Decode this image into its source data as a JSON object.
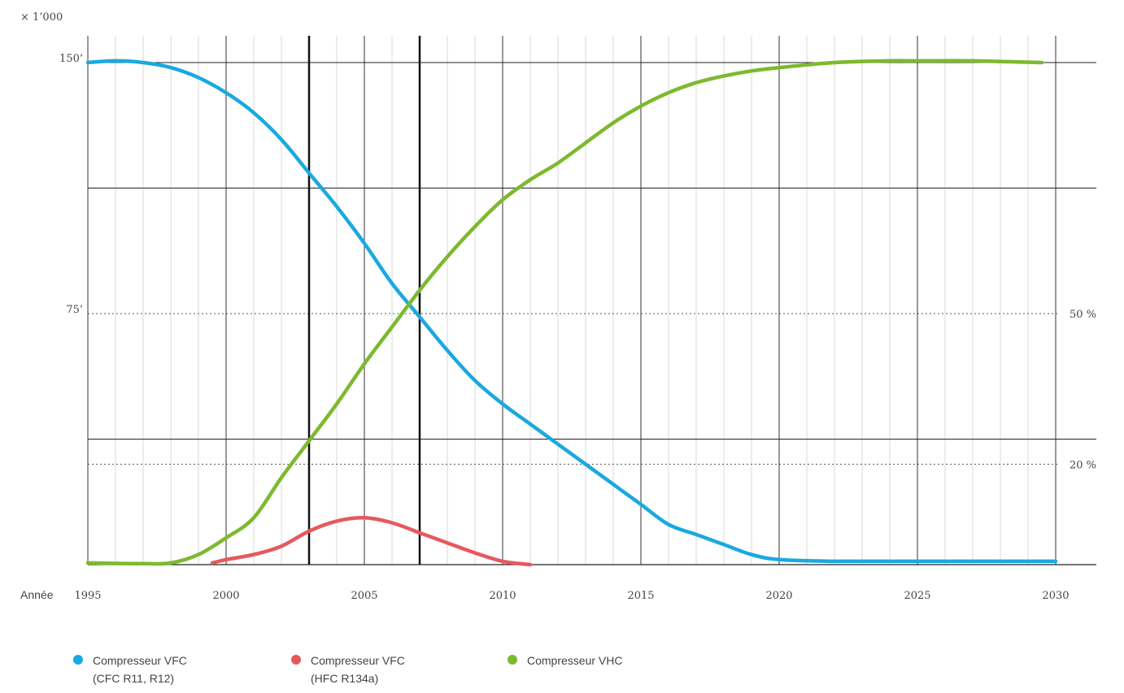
{
  "chart_data": {
    "type": "line",
    "title": "",
    "ylabel": "× 1’000",
    "xlabel_prefix": "Année",
    "xlim": [
      1995,
      2030
    ],
    "ylim": [
      0,
      160
    ],
    "x_ticks": [
      "1995",
      "2000",
      "2005",
      "2010",
      "2015",
      "2020",
      "2025",
      "2030"
    ],
    "y_ticks": [
      {
        "value": 150,
        "label": "150’"
      },
      {
        "value": 75,
        "label": "75’"
      }
    ],
    "y_solid_gridlines": [
      150,
      112.5,
      37.5
    ],
    "y_dotted_gridlines": [
      75,
      30
    ],
    "right_labels": [
      {
        "value": 75,
        "label": "50 %"
      },
      {
        "value": 30,
        "label": "20 %"
      }
    ],
    "vertical_markers": [
      2003,
      2007
    ],
    "grid": true,
    "legend_position": "bottom",
    "series": [
      {
        "name": "Compresseur VFC",
        "name_sub": "(CFC R11, R12)",
        "color": "#1aa9e0",
        "x": [
          1995,
          1996,
          1997,
          1998,
          1999,
          2000,
          2001,
          2002,
          2003,
          2004,
          2005,
          2006,
          2007,
          2008,
          2009,
          2010,
          2011,
          2012,
          2013,
          2014,
          2015,
          2016,
          2017,
          2018,
          2019,
          2020,
          2022,
          2025,
          2030
        ],
        "y": [
          150,
          150.5,
          150,
          148.5,
          145.5,
          141,
          135,
          127,
          117,
          107,
          96,
          84,
          74,
          64,
          55,
          48,
          42,
          36,
          30,
          24,
          18,
          12,
          9,
          6,
          3,
          1.5,
          1,
          1,
          1
        ]
      },
      {
        "name": "Compresseur VFC",
        "name_sub": "(HFC R134a)",
        "color": "#e5595d",
        "x": [
          1999.5,
          2000,
          2001,
          2002,
          2003,
          2004,
          2005,
          2006,
          2007,
          2008,
          2009,
          2010,
          2011
        ],
        "y": [
          0.5,
          1.5,
          3,
          5.5,
          10,
          13,
          14,
          12.5,
          9.5,
          6.5,
          3.5,
          1,
          0
        ]
      },
      {
        "name": "Compresseur VHC",
        "name_sub": "",
        "color": "#7db92e",
        "x": [
          1995,
          1997,
          1998,
          1999,
          2000,
          2001,
          2002,
          2003,
          2004,
          2005,
          2006,
          2007,
          2008,
          2009,
          2010,
          2011,
          2012,
          2013,
          2014,
          2015,
          2016,
          2017,
          2018,
          2019,
          2020,
          2022,
          2024,
          2025,
          2027,
          2029.5
        ],
        "y": [
          0.5,
          0.3,
          0.5,
          3,
          8,
          14,
          26,
          37,
          48,
          60,
          71,
          82,
          92,
          101,
          109,
          115,
          120,
          126,
          132,
          137,
          141,
          144,
          146,
          147.5,
          148.5,
          150,
          150.5,
          150.5,
          150.5,
          150
        ]
      }
    ]
  }
}
